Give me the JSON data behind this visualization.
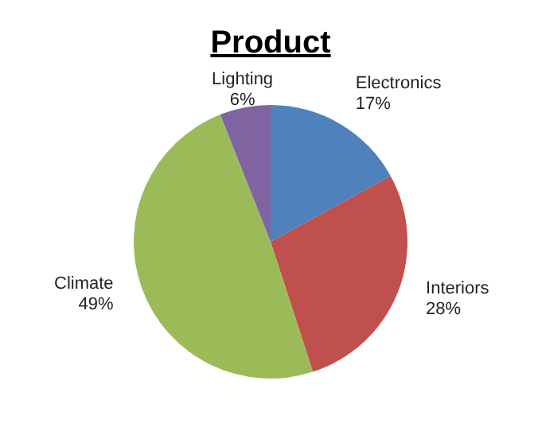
{
  "chart_data": {
    "type": "pie",
    "title": "Product",
    "categories": [
      "Electronics",
      "Interiors",
      "Climate",
      "Lighting"
    ],
    "values": [
      17,
      28,
      49,
      6
    ],
    "colors": [
      "#4f81bd",
      "#c0504d",
      "#9bbb59",
      "#8064a2"
    ],
    "value_labels": [
      "17%",
      "28%",
      "49%",
      "6%"
    ]
  }
}
